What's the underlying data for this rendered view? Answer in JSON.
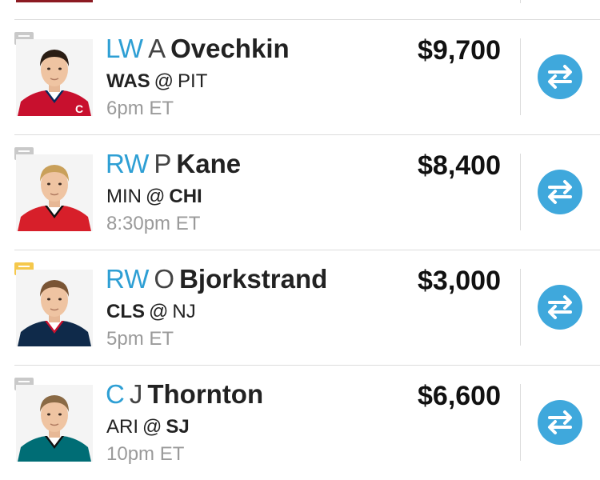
{
  "players": [
    {
      "position": "LW",
      "initial": "A",
      "last_name": "Ovechkin",
      "away_team": "WAS",
      "home_team": "PIT",
      "bold_team": "away",
      "game_time": "6pm ET",
      "salary": "$9,700",
      "has_news": false,
      "icon": "chat-bubble-icon",
      "swap_icon": "swap-arrows-icon",
      "jersey_color": "#c8102e",
      "jersey_trim": "#0b2a5b",
      "hair_color": "#2a1d14",
      "captain_mark": "C"
    },
    {
      "position": "RW",
      "initial": "P",
      "last_name": "Kane",
      "away_team": "MIN",
      "home_team": "CHI",
      "bold_team": "home",
      "game_time": "8:30pm ET",
      "salary": "$8,400",
      "has_news": false,
      "icon": "chat-bubble-icon",
      "swap_icon": "swap-arrows-icon",
      "jersey_color": "#d71f2a",
      "jersey_trim": "#111111",
      "hair_color": "#c9a05a",
      "captain_mark": ""
    },
    {
      "position": "RW",
      "initial": "O",
      "last_name": "Bjorkstrand",
      "away_team": "CLS",
      "home_team": "NJ",
      "bold_team": "away",
      "game_time": "5pm ET",
      "salary": "$3,000",
      "has_news": true,
      "icon": "chat-bubble-icon",
      "swap_icon": "swap-arrows-icon",
      "jersey_color": "#0f2a4a",
      "jersey_trim": "#c8102e",
      "hair_color": "#7a5535",
      "captain_mark": ""
    },
    {
      "position": "C",
      "initial": "J",
      "last_name": "Thornton",
      "away_team": "ARI",
      "home_team": "SJ",
      "bold_team": "home",
      "game_time": "10pm ET",
      "salary": "$6,600",
      "has_news": false,
      "icon": "chat-bubble-icon",
      "swap_icon": "swap-arrows-icon",
      "jersey_color": "#006d75",
      "jersey_trim": "#111111",
      "hair_color": "#8a6a45",
      "captain_mark": ""
    }
  ],
  "colors": {
    "position": "#2e9fd4",
    "swap_button": "#3fa8dc",
    "note_default": "#c9c9c9",
    "note_news": "#f5c84c",
    "divider": "#dcdcdc",
    "time_text": "#9a9a9a",
    "prev_row_photo_edge": "#8c1a22"
  }
}
